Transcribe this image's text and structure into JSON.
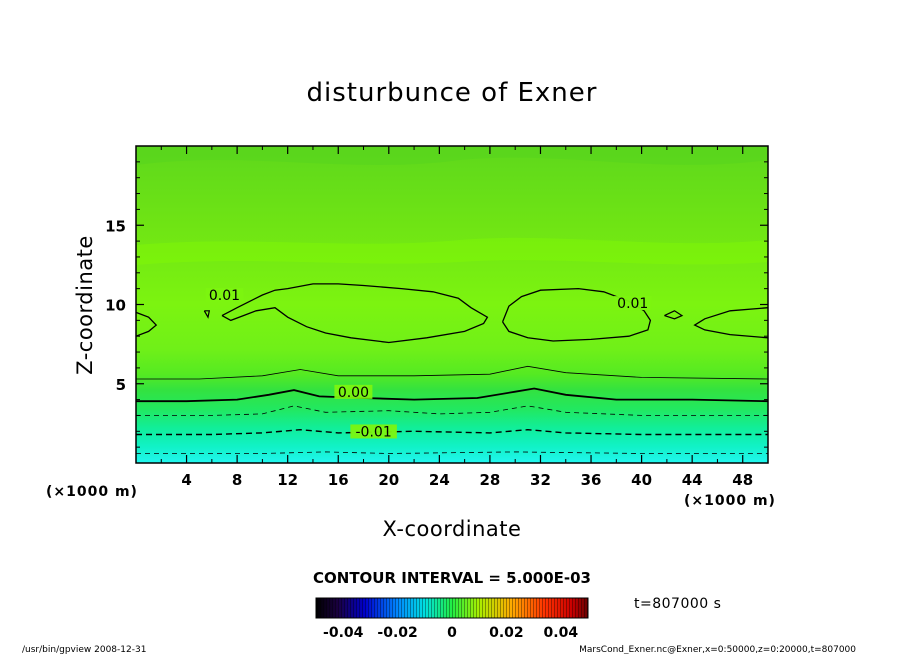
{
  "chart_data": {
    "type": "heatmap",
    "title": "disturbunce of Exner",
    "xlabel": "X-coordinate",
    "ylabel": "Z-coordinate",
    "x_unit": "(×1000 m)",
    "y_unit": "(×1000 m)",
    "xlim": [
      0,
      50
    ],
    "ylim": [
      0,
      20
    ],
    "x_ticks": [
      "4",
      "8",
      "12",
      "16",
      "20",
      "24",
      "28",
      "32",
      "36",
      "40",
      "44",
      "48"
    ],
    "x_tick_values": [
      4,
      8,
      12,
      16,
      20,
      24,
      28,
      32,
      36,
      40,
      44,
      48
    ],
    "y_ticks": [
      "5",
      "10",
      "15"
    ],
    "y_tick_values": [
      5,
      10,
      15
    ],
    "contour_interval_label": "CONTOUR INTERVAL = 5.000E-03",
    "contour_levels": [
      -0.015,
      -0.01,
      -0.005,
      0.0,
      0.005,
      0.01
    ],
    "contour_labels": [
      {
        "text": "0.01",
        "x": 7.0,
        "z": 10.4
      },
      {
        "text": "0.01",
        "x": 39.3,
        "z": 9.9
      },
      {
        "text": "0.00",
        "x": 17.2,
        "z": 4.3
      },
      {
        "text": "-0.01",
        "x": 18.8,
        "z": 1.8
      }
    ],
    "time_label": "t=807000 s",
    "colorbar": {
      "ticks": [
        "-0.04",
        "-0.02",
        "0",
        "0.02",
        "0.04"
      ],
      "tick_values": [
        -0.04,
        -0.02,
        0,
        0.02,
        0.04
      ],
      "range": [
        -0.05,
        0.05
      ]
    },
    "colors": {
      "low": "#00e0ff",
      "mid": "#44ee22",
      "high": "#88ff00",
      "contour": "#000000"
    }
  },
  "footer": {
    "left": "/usr/bin/gpview   2008-12-31",
    "right": "MarsCond_Exner.nc@Exner,x=0:50000,z=0:20000,t=807000"
  }
}
